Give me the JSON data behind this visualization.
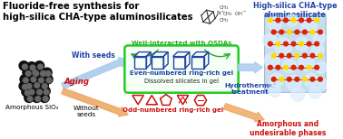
{
  "title_line1": "Fluoride-free synthesis for",
  "title_line2": "high-silica CHA-type aluminosilicates",
  "title_color": "#000000",
  "title_fontsize": 7.2,
  "label_with_seeds": "With seeds",
  "label_without_seeds": "Without\nseeds",
  "label_aging": "Aging",
  "label_amorphous": "Amorphous SiO₂",
  "label_even_ring": "Even-numbered ring-rich gel",
  "label_odd_ring": "Odd-numbered ring-rich gel",
  "label_dissolved": "Dissolved silicates in gel",
  "label_well_interacted": "Well-interacted with OSDAs",
  "label_hydrothermal": "Hydrothermal\ntreatment",
  "label_cha": "High-silica CHA-type\naluminosilicate",
  "label_amorphous_result": "Amorphous and\nundesirable phases",
  "color_blue": "#2244aa",
  "color_red": "#cc1111",
  "color_orange": "#e07020",
  "color_green": "#22aa22",
  "color_arrow_blue": "#aaccee",
  "color_arrow_orange": "#eeaa66",
  "bg_color": "#ffffff",
  "green_box_color": "#22cc22",
  "molecule_color": "#333333"
}
